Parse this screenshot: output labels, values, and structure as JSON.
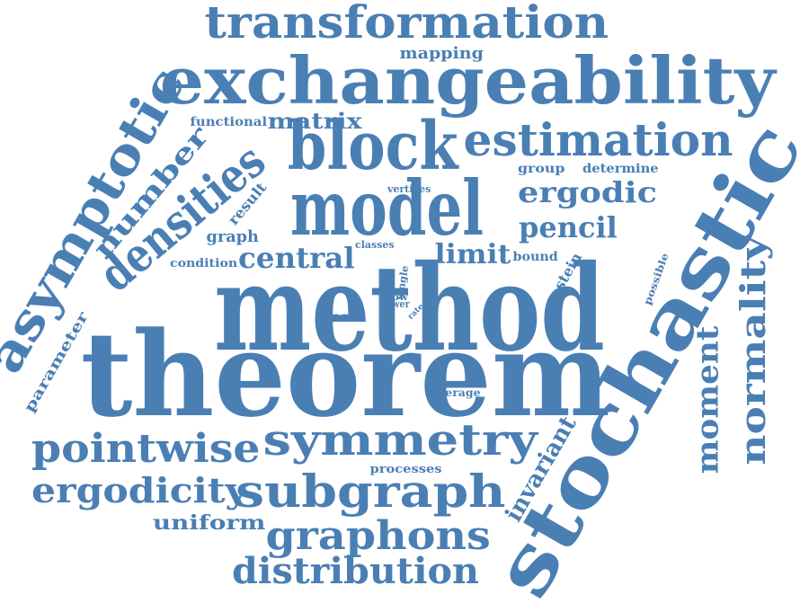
{
  "cloud": {
    "color": "#4a7fb4",
    "background": "#ffffff",
    "words": [
      {
        "text": "method"
      },
      {
        "text": "theorem"
      },
      {
        "text": "stochastic"
      },
      {
        "text": "exchangeability"
      },
      {
        "text": "transformation"
      },
      {
        "text": "model"
      },
      {
        "text": "block"
      },
      {
        "text": "estimation"
      },
      {
        "text": "densities"
      },
      {
        "text": "asymptotic"
      },
      {
        "text": "symmetry"
      },
      {
        "text": "subgraph"
      },
      {
        "text": "pointwise"
      },
      {
        "text": "graphons"
      },
      {
        "text": "distribution"
      },
      {
        "text": "ergodicity"
      },
      {
        "text": "normality"
      },
      {
        "text": "moment"
      },
      {
        "text": "number"
      },
      {
        "text": "ergodic"
      },
      {
        "text": "pencil"
      },
      {
        "text": "central"
      },
      {
        "text": "limit"
      },
      {
        "text": "matrix"
      },
      {
        "text": "invariant"
      },
      {
        "text": "uniform"
      },
      {
        "text": "mapping"
      },
      {
        "text": "graph"
      },
      {
        "text": "parameter"
      },
      {
        "text": "stein"
      },
      {
        "text": "functional"
      },
      {
        "text": "group"
      },
      {
        "text": "determine"
      },
      {
        "text": "result"
      },
      {
        "text": "condition"
      },
      {
        "text": "bound"
      },
      {
        "text": "vertices"
      },
      {
        "text": "classes"
      },
      {
        "text": "class"
      },
      {
        "text": "processes"
      },
      {
        "text": "average"
      },
      {
        "text": "possible"
      },
      {
        "text": "single"
      },
      {
        "text": "slow"
      },
      {
        "text": "lower"
      },
      {
        "text": "rate"
      }
    ]
  }
}
